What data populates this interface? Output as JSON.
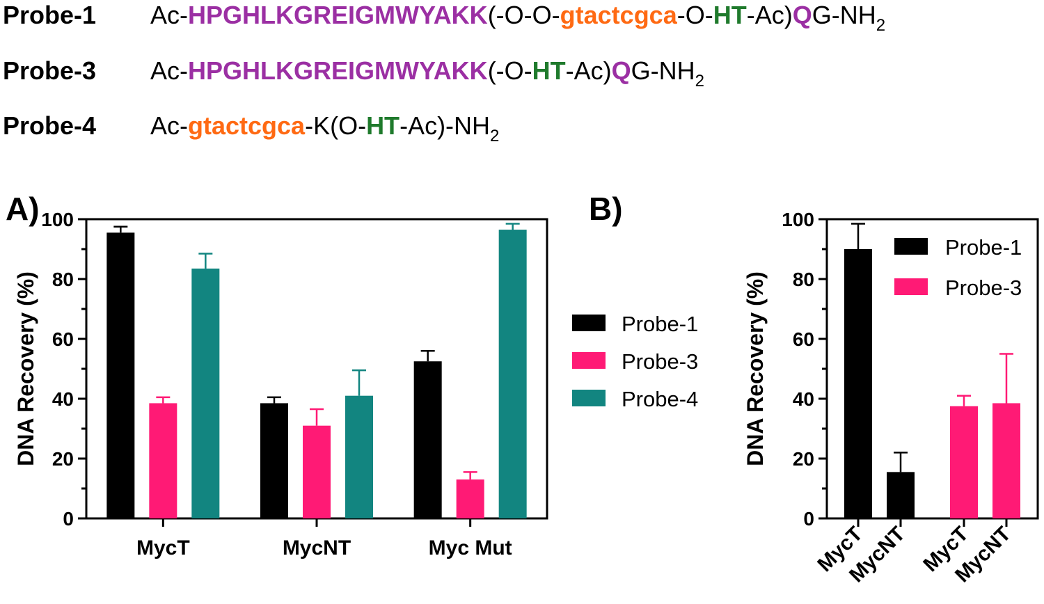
{
  "colors": {
    "probe1": "#000000",
    "probe3": "#ff1a75",
    "probe4": "#128580",
    "peptide": "#9b2fa3",
    "dna": "#ff6a13",
    "ht": "#1f7a2c",
    "text": "#000000"
  },
  "probes": [
    {
      "label": "Probe-1",
      "segments": [
        {
          "text": "Ac-",
          "color": "text",
          "bold": false
        },
        {
          "text": "HPGHLKGREIGMWYAKK",
          "color": "peptide",
          "bold": true
        },
        {
          "text": "(-O-O-",
          "color": "text",
          "bold": false
        },
        {
          "text": "gtactcgca",
          "color": "dna",
          "bold": true
        },
        {
          "text": "-O-",
          "color": "text",
          "bold": false
        },
        {
          "text": "HT",
          "color": "ht",
          "bold": true
        },
        {
          "text": "-Ac)",
          "color": "text",
          "bold": false
        },
        {
          "text": "Q",
          "color": "peptide",
          "bold": true
        },
        {
          "text": "G-NH",
          "color": "text",
          "bold": false
        },
        {
          "text": "2",
          "color": "text",
          "bold": false,
          "sub": true
        }
      ]
    },
    {
      "label": "Probe-3",
      "segments": [
        {
          "text": "Ac-",
          "color": "text",
          "bold": false
        },
        {
          "text": "HPGHLKGREIGMWYAKK",
          "color": "peptide",
          "bold": true
        },
        {
          "text": "(-O-",
          "color": "text",
          "bold": false
        },
        {
          "text": "HT",
          "color": "ht",
          "bold": true
        },
        {
          "text": "-Ac)",
          "color": "text",
          "bold": false
        },
        {
          "text": "Q",
          "color": "peptide",
          "bold": true
        },
        {
          "text": "G-NH",
          "color": "text",
          "bold": false
        },
        {
          "text": "2",
          "color": "text",
          "bold": false,
          "sub": true
        }
      ]
    },
    {
      "label": "Probe-4",
      "segments": [
        {
          "text": "Ac-",
          "color": "text",
          "bold": false
        },
        {
          "text": "gtactcgca",
          "color": "dna",
          "bold": true
        },
        {
          "text": "-K(O-",
          "color": "text",
          "bold": false
        },
        {
          "text": "HT",
          "color": "ht",
          "bold": true
        },
        {
          "text": "-Ac)-NH",
          "color": "text",
          "bold": false
        },
        {
          "text": "2",
          "color": "text",
          "bold": false,
          "sub": true
        }
      ]
    }
  ],
  "chart_data": [
    {
      "type": "bar",
      "panel": "A)",
      "ylabel": "DNA Recovery  (%)",
      "ylim": [
        0,
        100
      ],
      "yticks": [
        0,
        20,
        40,
        60,
        80,
        100
      ],
      "categories": [
        "MycT",
        "MycNT",
        "Myc Mut"
      ],
      "series": [
        {
          "name": "Probe-1",
          "color": "probe1",
          "values": [
            95.5,
            38.5,
            52.5
          ],
          "errors": [
            2,
            2,
            3.5
          ]
        },
        {
          "name": "Probe-3",
          "color": "probe3",
          "values": [
            38.5,
            31,
            13
          ],
          "errors": [
            2,
            5.5,
            2.5
          ]
        },
        {
          "name": "Probe-4",
          "color": "probe4",
          "values": [
            83.5,
            41,
            96.5
          ],
          "errors": [
            5,
            8.5,
            2
          ]
        }
      ],
      "legend": "right",
      "grid": false
    },
    {
      "type": "bar",
      "panel": "B)",
      "ylabel": "DNA Recovery  (%)",
      "ylim": [
        0,
        100
      ],
      "yticks": [
        0,
        20,
        40,
        60,
        80,
        100
      ],
      "groups": [
        {
          "series": "Probe-1",
          "color": "probe1",
          "categories": [
            "MycT",
            "MycNT"
          ],
          "values": [
            90,
            15.5
          ],
          "errors": [
            8.5,
            6.5
          ]
        },
        {
          "series": "Probe-3",
          "color": "probe3",
          "categories": [
            "MycT",
            "MycNT"
          ],
          "values": [
            37.5,
            38.5
          ],
          "errors": [
            3.5,
            16.5
          ]
        }
      ],
      "legend_entries": [
        "Probe-1",
        "Probe-3"
      ],
      "legend": "top-right",
      "grid": false
    }
  ]
}
